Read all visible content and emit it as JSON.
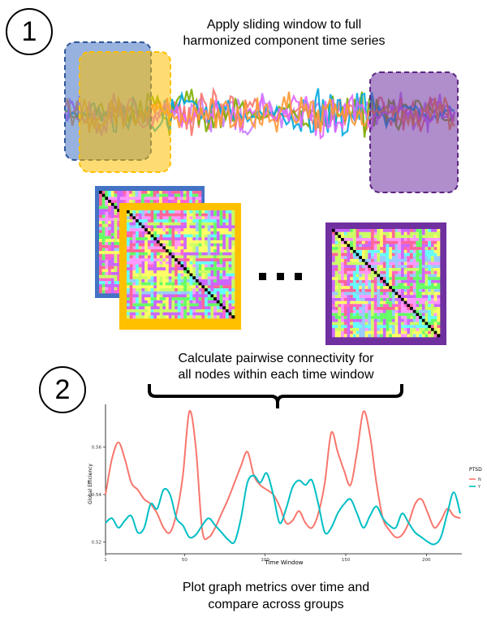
{
  "step1": {
    "number": "1",
    "caption_line1": "Apply sliding window to full",
    "caption_line2": "harmonized component time series",
    "ellipsis": "…"
  },
  "step2": {
    "number": "2",
    "caption_line1": "Calculate pairwise connectivity for",
    "caption_line2": "all nodes within each time window",
    "bottom_line1": "Plot graph metrics over time and",
    "bottom_line2": "compare across groups"
  },
  "colors": {
    "window_blue": "#4472c4",
    "window_yellow": "#ffc000",
    "window_purple": "#7030a0",
    "group_N": "#f8766d",
    "group_Y": "#00bfc4"
  },
  "series_colors": [
    "#c77cff",
    "#f8766d",
    "#7cae00",
    "#00a9e0",
    "#e066ff",
    "#ff9933"
  ],
  "chart_data": {
    "type": "line",
    "title": "",
    "xlabel": "Time Window",
    "ylabel": "Global Efficiency",
    "xlim": [
      1,
      222
    ],
    "ylim": [
      0.515,
      0.578
    ],
    "x_ticks": [
      1,
      50,
      100,
      150,
      200
    ],
    "y_ticks": [
      0.52,
      0.54,
      0.56
    ],
    "x_tick_labels": [
      "1",
      "50",
      "100",
      "150",
      "200"
    ],
    "y_tick_labels": [
      "0.52",
      "0.54",
      "0.56"
    ],
    "grid": false,
    "legend": {
      "title": "PTSD",
      "position": "right"
    },
    "series": [
      {
        "name": "N",
        "x": [
          1,
          5,
          9,
          13,
          17,
          21,
          25,
          29,
          33,
          37,
          41,
          45,
          49,
          53,
          57,
          61,
          65,
          69,
          73,
          77,
          81,
          85,
          89,
          93,
          97,
          101,
          105,
          109,
          113,
          117,
          121,
          125,
          129,
          133,
          137,
          141,
          145,
          149,
          153,
          157,
          161,
          165,
          169,
          173,
          177,
          181,
          185,
          189,
          193,
          197,
          201,
          205,
          209,
          213,
          217,
          221
        ],
        "values": [
          0.54,
          0.555,
          0.562,
          0.555,
          0.545,
          0.542,
          0.538,
          0.536,
          0.532,
          0.526,
          0.524,
          0.532,
          0.548,
          0.575,
          0.56,
          0.525,
          0.522,
          0.526,
          0.532,
          0.538,
          0.545,
          0.552,
          0.558,
          0.548,
          0.544,
          0.542,
          0.54,
          0.535,
          0.528,
          0.529,
          0.533,
          0.528,
          0.526,
          0.532,
          0.545,
          0.566,
          0.558,
          0.55,
          0.544,
          0.558,
          0.575,
          0.565,
          0.545,
          0.53,
          0.525,
          0.522,
          0.523,
          0.528,
          0.536,
          0.538,
          0.532,
          0.526,
          0.529,
          0.534,
          0.531,
          0.53
        ]
      },
      {
        "name": "Y",
        "x": [
          1,
          5,
          9,
          13,
          17,
          21,
          25,
          29,
          33,
          37,
          41,
          45,
          49,
          53,
          57,
          61,
          65,
          69,
          73,
          77,
          81,
          85,
          89,
          93,
          97,
          101,
          105,
          109,
          113,
          117,
          121,
          125,
          129,
          133,
          137,
          141,
          145,
          149,
          153,
          157,
          161,
          165,
          169,
          173,
          177,
          181,
          185,
          189,
          193,
          197,
          201,
          205,
          209,
          213,
          217,
          221
        ],
        "values": [
          0.528,
          0.53,
          0.526,
          0.529,
          0.531,
          0.524,
          0.526,
          0.536,
          0.534,
          0.542,
          0.54,
          0.53,
          0.527,
          0.522,
          0.523,
          0.527,
          0.53,
          0.527,
          0.524,
          0.521,
          0.52,
          0.53,
          0.545,
          0.548,
          0.545,
          0.549,
          0.54,
          0.528,
          0.534,
          0.543,
          0.546,
          0.544,
          0.546,
          0.536,
          0.524,
          0.526,
          0.532,
          0.536,
          0.538,
          0.532,
          0.526,
          0.531,
          0.535,
          0.53,
          0.527,
          0.526,
          0.532,
          0.528,
          0.524,
          0.522,
          0.52,
          0.519,
          0.522,
          0.532,
          0.541,
          0.532
        ]
      }
    ]
  }
}
